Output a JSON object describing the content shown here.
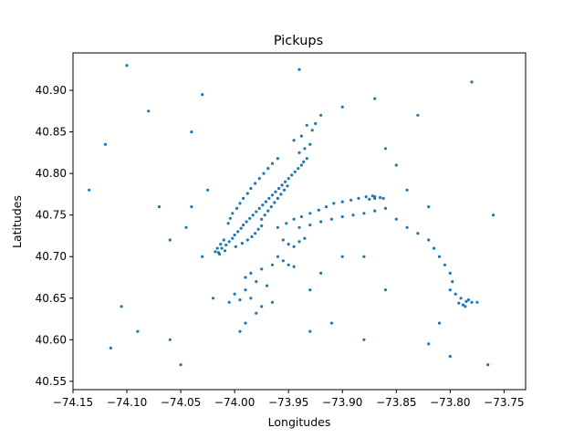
{
  "chart_data": {
    "type": "scatter",
    "title": "Pickups",
    "xlabel": "Longitudes",
    "ylabel": "Latitudes",
    "xlim": [
      -74.15,
      -73.73
    ],
    "ylim": [
      40.54,
      40.945
    ],
    "xticks": [
      "−74.15",
      "−74.10",
      "−74.05",
      "−74.00",
      "−73.95",
      "−73.90",
      "−73.85",
      "−73.80",
      "−73.75"
    ],
    "xtick_values": [
      -74.15,
      -74.1,
      -74.05,
      -74.0,
      -73.95,
      -73.9,
      -73.85,
      -73.8,
      -73.75
    ],
    "yticks": [
      "40.55",
      "40.60",
      "40.65",
      "40.70",
      "40.75",
      "40.80",
      "40.85",
      "40.90"
    ],
    "ytick_values": [
      40.55,
      40.6,
      40.65,
      40.7,
      40.75,
      40.8,
      40.85,
      40.9
    ],
    "grid": false,
    "color": "#1f77b4",
    "series": [
      {
        "points": [
          [
            -74.015,
            40.705
          ],
          [
            -74.012,
            40.71
          ],
          [
            -74.008,
            40.714
          ],
          [
            -74.005,
            40.718
          ],
          [
            -74.002,
            40.722
          ],
          [
            -74.0,
            40.726
          ],
          [
            -73.997,
            40.73
          ],
          [
            -73.994,
            40.734
          ],
          [
            -73.992,
            40.738
          ],
          [
            -73.989,
            40.742
          ],
          [
            -73.986,
            40.746
          ],
          [
            -73.983,
            40.75
          ],
          [
            -73.98,
            40.754
          ],
          [
            -73.977,
            40.758
          ],
          [
            -73.974,
            40.762
          ],
          [
            -73.971,
            40.766
          ],
          [
            -73.968,
            40.77
          ],
          [
            -73.965,
            40.774
          ],
          [
            -73.962,
            40.778
          ],
          [
            -73.959,
            40.782
          ],
          [
            -73.956,
            40.786
          ],
          [
            -73.953,
            40.79
          ],
          [
            -73.95,
            40.794
          ],
          [
            -73.947,
            40.798
          ],
          [
            -73.944,
            40.802
          ],
          [
            -73.941,
            40.806
          ],
          [
            -73.938,
            40.81
          ],
          [
            -73.936,
            40.814
          ],
          [
            -73.933,
            40.818
          ],
          [
            -74.006,
            40.74
          ],
          [
            -74.004,
            40.746
          ],
          [
            -74.002,
            40.752
          ],
          [
            -73.998,
            40.758
          ],
          [
            -73.995,
            40.764
          ],
          [
            -73.992,
            40.77
          ],
          [
            -73.988,
            40.776
          ],
          [
            -73.985,
            40.782
          ],
          [
            -73.981,
            40.788
          ],
          [
            -73.977,
            40.794
          ],
          [
            -73.973,
            40.8
          ],
          [
            -73.969,
            40.806
          ],
          [
            -73.965,
            40.812
          ],
          [
            -73.96,
            40.818
          ],
          [
            -73.975,
            40.745
          ],
          [
            -73.972,
            40.75
          ],
          [
            -73.969,
            40.755
          ],
          [
            -73.966,
            40.76
          ],
          [
            -73.963,
            40.765
          ],
          [
            -73.96,
            40.77
          ],
          [
            -73.957,
            40.775
          ],
          [
            -73.954,
            40.78
          ],
          [
            -73.951,
            40.785
          ],
          [
            -74.01,
            40.72
          ],
          [
            -74.013,
            40.715
          ],
          [
            -74.016,
            40.71
          ],
          [
            -74.018,
            40.706
          ],
          [
            -74.014,
            40.703
          ],
          [
            -74.009,
            40.707
          ],
          [
            -73.999,
            40.712
          ],
          [
            -73.993,
            40.716
          ],
          [
            -73.988,
            40.72
          ],
          [
            -73.984,
            40.724
          ],
          [
            -73.981,
            40.728
          ],
          [
            -73.978,
            40.733
          ],
          [
            -73.975,
            40.737
          ],
          [
            -73.935,
            40.83
          ],
          [
            -73.93,
            40.835
          ],
          [
            -73.94,
            40.825
          ],
          [
            -73.945,
            40.84
          ],
          [
            -73.938,
            40.845
          ],
          [
            -73.928,
            40.852
          ],
          [
            -73.925,
            40.86
          ],
          [
            -73.933,
            40.858
          ],
          [
            -73.92,
            40.87
          ],
          [
            -73.955,
            40.72
          ],
          [
            -73.95,
            40.715
          ],
          [
            -73.945,
            40.712
          ],
          [
            -73.94,
            40.718
          ],
          [
            -73.935,
            40.722
          ],
          [
            -73.96,
            40.735
          ],
          [
            -73.952,
            40.74
          ],
          [
            -73.945,
            40.745
          ],
          [
            -73.938,
            40.748
          ],
          [
            -73.93,
            40.752
          ],
          [
            -73.922,
            40.756
          ],
          [
            -73.915,
            40.76
          ],
          [
            -73.908,
            40.764
          ],
          [
            -73.9,
            40.766
          ],
          [
            -73.892,
            40.768
          ],
          [
            -73.885,
            40.77
          ],
          [
            -73.878,
            40.772
          ],
          [
            -73.87,
            40.77
          ],
          [
            -73.862,
            40.77
          ],
          [
            -73.94,
            40.735
          ],
          [
            -73.93,
            40.738
          ],
          [
            -73.92,
            40.742
          ],
          [
            -73.91,
            40.745
          ],
          [
            -73.9,
            40.748
          ],
          [
            -73.89,
            40.75
          ],
          [
            -73.88,
            40.752
          ],
          [
            -73.87,
            40.755
          ],
          [
            -73.86,
            40.758
          ],
          [
            -73.85,
            40.745
          ],
          [
            -73.96,
            40.7
          ],
          [
            -73.955,
            40.695
          ],
          [
            -73.95,
            40.69
          ],
          [
            -73.945,
            40.688
          ],
          [
            -73.965,
            40.69
          ],
          [
            -73.975,
            40.685
          ],
          [
            -73.985,
            40.68
          ],
          [
            -73.99,
            40.675
          ],
          [
            -73.98,
            40.67
          ],
          [
            -73.97,
            40.665
          ],
          [
            -73.99,
            40.66
          ],
          [
            -74.0,
            40.655
          ],
          [
            -73.995,
            40.648
          ],
          [
            -74.005,
            40.645
          ],
          [
            -73.985,
            40.65
          ],
          [
            -73.975,
            40.64
          ],
          [
            -73.965,
            40.645
          ],
          [
            -73.98,
            40.632
          ],
          [
            -73.99,
            40.62
          ],
          [
            -73.995,
            40.61
          ],
          [
            -73.84,
            40.735
          ],
          [
            -73.83,
            40.728
          ],
          [
            -73.82,
            40.72
          ],
          [
            -73.815,
            40.71
          ],
          [
            -73.81,
            40.7
          ],
          [
            -73.805,
            40.69
          ],
          [
            -73.8,
            40.68
          ],
          [
            -73.798,
            40.67
          ],
          [
            -73.8,
            40.66
          ],
          [
            -73.795,
            40.655
          ],
          [
            -73.79,
            40.65
          ],
          [
            -73.785,
            40.646
          ],
          [
            -73.78,
            40.645
          ],
          [
            -73.788,
            40.642
          ],
          [
            -73.792,
            40.644
          ],
          [
            -73.783,
            40.648
          ],
          [
            -73.775,
            40.645
          ],
          [
            -73.786,
            40.64
          ],
          [
            -73.87,
            40.772
          ],
          [
            -73.865,
            40.771
          ],
          [
            -73.875,
            40.769
          ],
          [
            -73.872,
            40.773
          ],
          [
            -74.12,
            40.835
          ],
          [
            -74.1,
            40.93
          ],
          [
            -74.08,
            40.875
          ],
          [
            -74.06,
            40.6
          ],
          [
            -74.135,
            40.78
          ],
          [
            -74.09,
            40.61
          ],
          [
            -74.105,
            40.64
          ],
          [
            -74.115,
            40.59
          ],
          [
            -74.03,
            40.895
          ],
          [
            -74.04,
            40.85
          ],
          [
            -73.78,
            40.91
          ],
          [
            -73.76,
            40.75
          ],
          [
            -73.765,
            40.57
          ],
          [
            -73.8,
            40.58
          ],
          [
            -73.82,
            40.595
          ],
          [
            -73.94,
            40.925
          ],
          [
            -73.9,
            40.88
          ],
          [
            -73.87,
            40.89
          ],
          [
            -73.86,
            40.83
          ],
          [
            -73.88,
            40.6
          ],
          [
            -73.91,
            40.62
          ],
          [
            -73.93,
            40.61
          ],
          [
            -74.05,
            40.57
          ],
          [
            -74.02,
            40.65
          ],
          [
            -74.03,
            40.7
          ],
          [
            -74.045,
            40.735
          ],
          [
            -74.06,
            40.72
          ],
          [
            -74.07,
            40.76
          ],
          [
            -74.04,
            40.76
          ],
          [
            -74.025,
            40.78
          ],
          [
            -73.83,
            40.87
          ],
          [
            -73.85,
            40.81
          ],
          [
            -73.84,
            40.78
          ],
          [
            -73.82,
            40.76
          ],
          [
            -73.81,
            40.62
          ],
          [
            -73.86,
            40.66
          ],
          [
            -73.88,
            40.7
          ],
          [
            -73.9,
            40.7
          ],
          [
            -73.92,
            40.68
          ],
          [
            -73.93,
            40.66
          ]
        ]
      }
    ]
  }
}
